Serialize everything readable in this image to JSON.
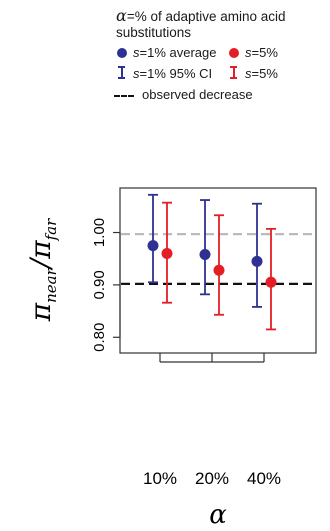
{
  "legend": {
    "title_symbol": "α",
    "title_text": "=% of adaptive amino acid substitutions",
    "items": [
      {
        "sym": "s",
        "text": "=1% average",
        "color": "#2e3192"
      },
      {
        "sym": "s",
        "text": "=5%",
        "color": "#e31e24"
      },
      {
        "sym": "s",
        "text": "=1% 95% CI",
        "color": "#2e3192"
      },
      {
        "sym": "s",
        "text": "=5%",
        "color": "#e31e24"
      }
    ],
    "observed_label": "observed decrease"
  },
  "chart_data": {
    "type": "scatter",
    "categories": [
      "10%",
      "20%",
      "40%"
    ],
    "ylim": [
      0.77,
      1.085
    ],
    "yticks": [
      "0.80",
      "0.90",
      "1.00"
    ],
    "yticks_values": [
      0.8,
      0.9,
      1.0
    ],
    "ylabel": "π_near/π_far",
    "xlabel": "α",
    "series": [
      {
        "color": "#2e3192",
        "mean": [
          0.975,
          0.958,
          0.945
        ],
        "lower": [
          0.905,
          0.882,
          0.858
        ],
        "upper": [
          1.072,
          1.062,
          1.055
        ]
      },
      {
        "color": "#e31e24",
        "mean": [
          0.96,
          0.928,
          0.905
        ],
        "lower": [
          0.866,
          0.843,
          0.815
        ],
        "upper": [
          1.057,
          1.033,
          1.007
        ]
      }
    ],
    "reference_lines": [
      {
        "value": 0.997,
        "color": "#bbbbbb",
        "style": "dashed"
      },
      {
        "value": 0.902,
        "color": "#111111",
        "style": "dashed"
      }
    ]
  }
}
